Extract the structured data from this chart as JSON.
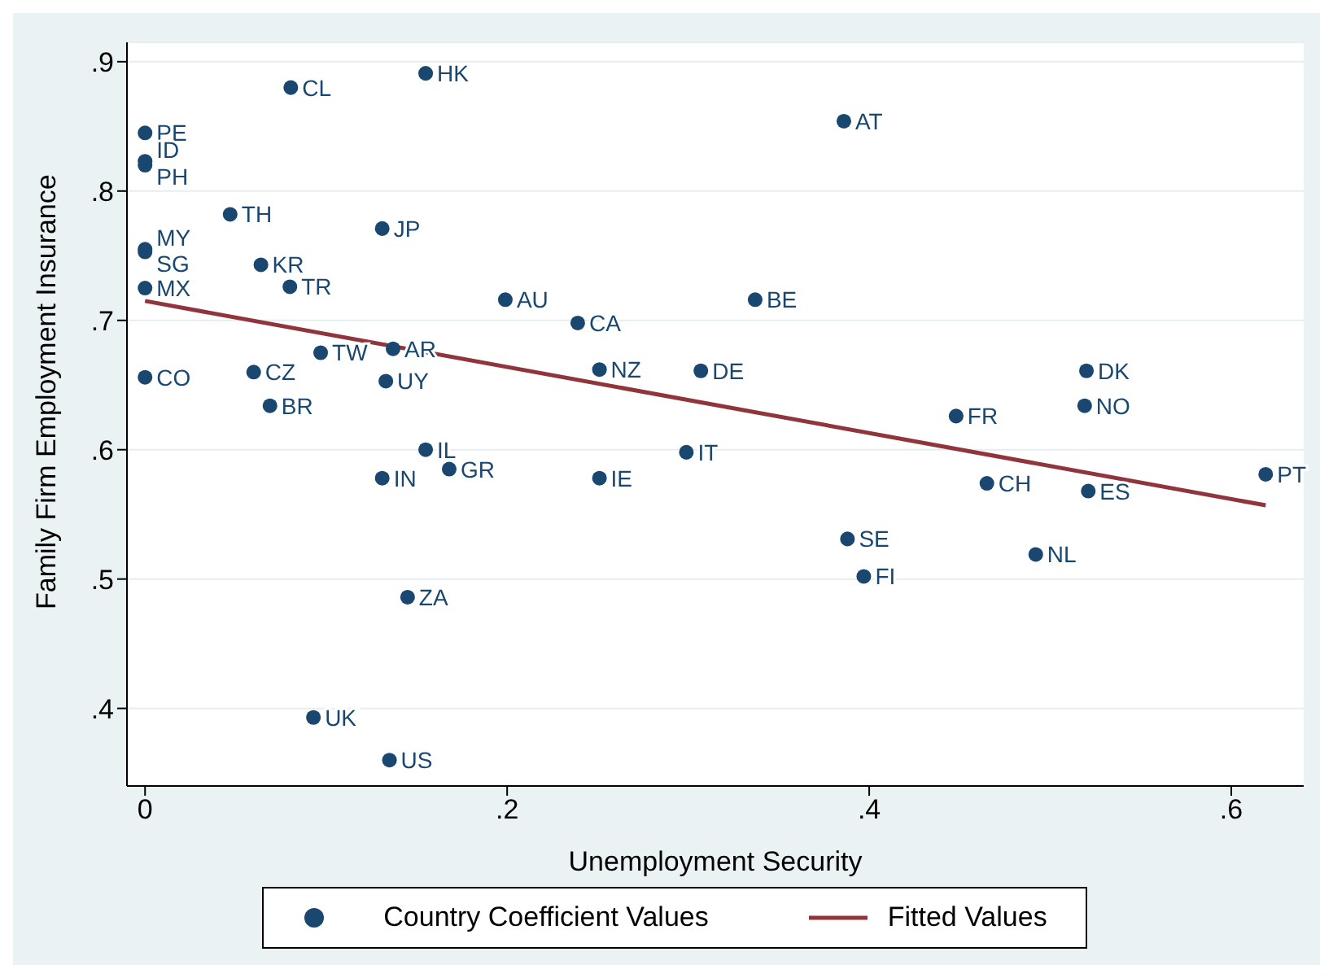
{
  "chart_data": {
    "type": "scatter",
    "xlabel": "Unemployment Security",
    "ylabel": "Family Firm Employment Insurance",
    "xlim": [
      -0.01,
      0.64
    ],
    "ylim": [
      0.34,
      0.915
    ],
    "xticks": [
      0,
      {
        "value": 0.2,
        "label": ".2"
      },
      {
        "value": 0.4,
        "label": ".4"
      },
      {
        "value": 0.6,
        "label": ".6"
      }
    ],
    "yticks": [
      {
        "value": 0.4,
        "label": ".4"
      },
      {
        "value": 0.5,
        "label": ".5"
      },
      {
        "value": 0.6,
        "label": ".6"
      },
      {
        "value": 0.7,
        "label": ".7"
      },
      {
        "value": 0.8,
        "label": ".8"
      },
      {
        "value": 0.9,
        "label": ".9"
      }
    ],
    "grid": "y",
    "legend": "bottom",
    "marker": "circle",
    "series": [
      {
        "name": "Country Coefficient Values",
        "color": "#1a476f",
        "x": [
          0,
          0,
          0,
          0.0805,
          0.155,
          0.386,
          0.047,
          0.131,
          0,
          0,
          0.064,
          0,
          0.08,
          0.199,
          0.337,
          0.239,
          0.137,
          0.097,
          0,
          0.06,
          0.251,
          0.307,
          0.52,
          0.133,
          0.069,
          0.519,
          0.448,
          0.155,
          0.299,
          0.168,
          0.619,
          0.131,
          0.251,
          0.465,
          0.521,
          0.388,
          0.492,
          0.397,
          0.145,
          0.093,
          0.135
        ],
        "values": [
          0.845,
          0.823,
          0.82,
          0.88,
          0.891,
          0.854,
          0.782,
          0.771,
          0.755,
          0.753,
          0.743,
          0.725,
          0.726,
          0.716,
          0.716,
          0.698,
          0.678,
          0.675,
          0.656,
          0.66,
          0.662,
          0.661,
          0.661,
          0.653,
          0.634,
          0.634,
          0.626,
          0.6,
          0.598,
          0.585,
          0.581,
          0.578,
          0.578,
          0.574,
          0.568,
          0.531,
          0.519,
          0.502,
          0.486,
          0.393,
          0.36
        ],
        "value_labels": [
          "PE",
          "ID",
          "PH",
          "CL",
          "HK",
          "AT",
          "TH",
          "JP",
          "MY",
          "SG",
          "KR",
          "MX",
          "TR",
          "AU",
          "BE",
          "CA",
          "AR",
          "TW",
          "CO",
          "CZ",
          "NZ",
          "DE",
          "DK",
          "UY",
          "BR",
          "NO",
          "FR",
          "IL",
          "IT",
          "GR",
          "PT",
          "IN",
          "IE",
          "CH",
          "ES",
          "SE",
          "NL",
          "FI",
          "ZA",
          "UK",
          "US"
        ]
      },
      {
        "name": "Fitted Values",
        "type": "line",
        "color": "#90353b",
        "marker": "none",
        "x": [
          0,
          0.619
        ],
        "values": [
          0.715,
          0.557
        ]
      }
    ]
  }
}
